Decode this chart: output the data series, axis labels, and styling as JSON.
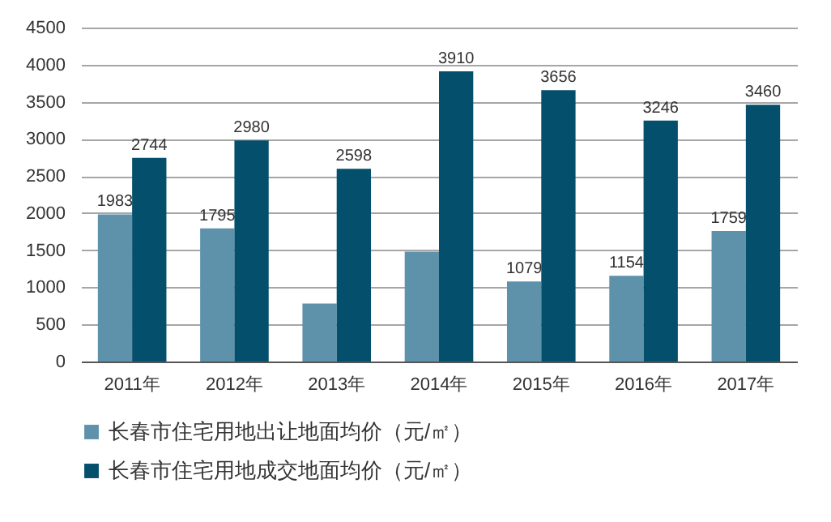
{
  "chart_data": {
    "type": "bar",
    "categories": [
      "2011年",
      "2012年",
      "2013年",
      "2014年",
      "2015年",
      "2016年",
      "2017年"
    ],
    "series": [
      {
        "name": "长春市住宅用地出让地面均价（元/㎡）",
        "color": "#5e92aa",
        "values": [
          1983,
          1795,
          780,
          1480,
          1079,
          1154,
          1759
        ],
        "value_labels": [
          "1983",
          "1795",
          null,
          null,
          "1079",
          "1154",
          "1759"
        ]
      },
      {
        "name": "长春市住宅用地成交地面均价（元/㎡）",
        "color": "#034f6c",
        "values": [
          2744,
          2980,
          2598,
          3910,
          3656,
          3246,
          3460
        ],
        "value_labels": [
          "2744",
          "2980",
          "2598",
          "3910",
          "3656",
          "3246",
          "3460"
        ]
      }
    ],
    "ylim": [
      0,
      4500
    ],
    "yticks": [
      0,
      500,
      1000,
      1500,
      2000,
      2500,
      3000,
      3500,
      4000,
      4500
    ],
    "grid": "y",
    "legend": "bottom"
  }
}
